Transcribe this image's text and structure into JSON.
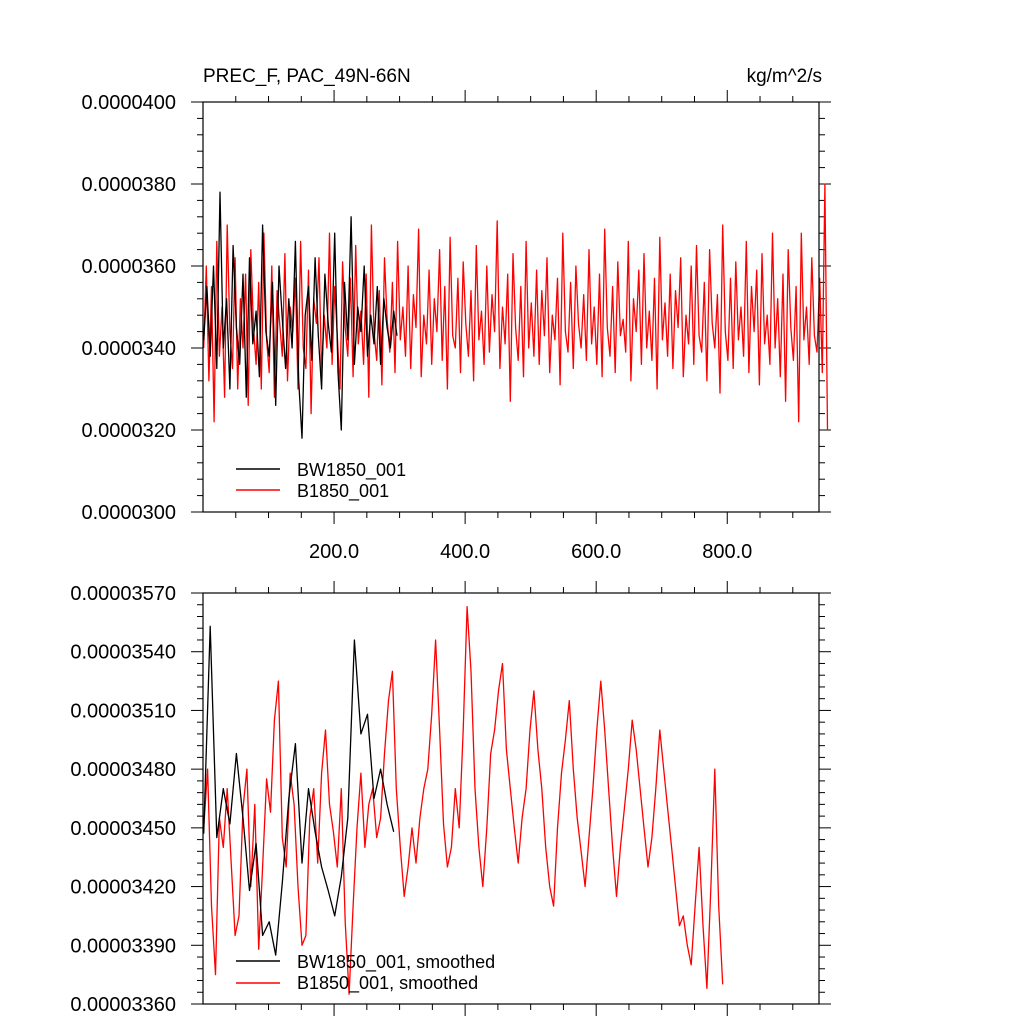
{
  "chart_data": [
    {
      "type": "line",
      "title": "PREC_F, PAC_49N-66N",
      "units": "kg/m^2/s",
      "xlim": [
        0,
        940
      ],
      "ylim": [
        3e-05,
        4e-05
      ],
      "xticks": [
        200,
        400,
        600,
        800
      ],
      "xtick_labels": [
        "200.0",
        "400.0",
        "600.0",
        "800.0"
      ],
      "yticks": [
        3e-05,
        3.2e-05,
        3.4e-05,
        3.6e-05,
        3.8e-05,
        4e-05
      ],
      "ytick_labels": [
        "0.0000300",
        "0.0000320",
        "0.0000340",
        "0.0000360",
        "0.0000380",
        "0.0000400"
      ],
      "legend_position": "bottom-left",
      "series": [
        {
          "name": "BW1850_001",
          "color": "#000000",
          "x_start": 1,
          "x_step": 5,
          "values": [
            3.42e-05,
            3.55e-05,
            3.38e-05,
            3.6e-05,
            3.35e-05,
            3.78e-05,
            3.4e-05,
            3.52e-05,
            3.3e-05,
            3.65e-05,
            3.45e-05,
            3.36e-05,
            3.58e-05,
            3.28e-05,
            3.62e-05,
            3.41e-05,
            3.49e-05,
            3.33e-05,
            3.7e-05,
            3.44e-05,
            3.38e-05,
            3.56e-05,
            3.26e-05,
            3.6e-05,
            3.47e-05,
            3.35e-05,
            3.52e-05,
            3.4e-05,
            3.66e-05,
            3.32e-05,
            3.18e-05,
            3.48e-05,
            3.55e-05,
            3.37e-05,
            3.62e-05,
            3.43e-05,
            3.3e-05,
            3.58e-05,
            3.46e-05,
            3.39e-05,
            3.68e-05,
            3.34e-05,
            3.2e-05,
            3.56e-05,
            3.42e-05,
            3.72e-05,
            3.36e-05,
            3.5e-05,
            3.44e-05,
            3.6e-05,
            3.38e-05,
            3.48e-05,
            3.41e-05,
            3.55e-05,
            3.36e-05,
            3.52e-05,
            3.45e-05,
            3.4e-05,
            3.49e-05,
            3.43e-05
          ]
        },
        {
          "name": "B1850_001",
          "color": "#ff0000",
          "x_start": 1,
          "x_step": 4,
          "values": [
            3.4e-05,
            3.6e-05,
            3.32e-05,
            3.55e-05,
            3.22e-05,
            3.66e-05,
            3.38e-05,
            3.5e-05,
            3.28e-05,
            3.7e-05,
            3.44e-05,
            3.35e-05,
            3.62e-05,
            3.3e-05,
            3.52e-05,
            3.4e-05,
            3.58e-05,
            3.26e-05,
            3.64e-05,
            3.45e-05,
            3.36e-05,
            3.56e-05,
            3.3e-05,
            3.68e-05,
            3.42e-05,
            3.34e-05,
            3.6e-05,
            3.28e-05,
            3.54e-05,
            3.46e-05,
            3.38e-05,
            3.63e-05,
            3.32e-05,
            3.5e-05,
            3.44e-05,
            3.57e-05,
            3.3e-05,
            3.66e-05,
            3.4e-05,
            3.35e-05,
            3.59e-05,
            3.24e-05,
            3.52e-05,
            3.46e-05,
            3.62e-05,
            3.34e-05,
            3.48e-05,
            3.4e-05,
            3.68e-05,
            3.36e-05,
            3.55e-05,
            3.43e-05,
            3.3e-05,
            3.61e-05,
            3.45e-05,
            3.38e-05,
            3.57e-05,
            3.33e-05,
            3.65e-05,
            3.41e-05,
            3.49e-05,
            3.36e-05,
            3.58e-05,
            3.28e-05,
            3.7e-05,
            3.44e-05,
            3.37e-05,
            3.54e-05,
            3.31e-05,
            3.62e-05,
            3.47e-05,
            3.39e-05,
            3.56e-05,
            3.34e-05,
            3.66e-05,
            3.42e-05,
            3.5e-05,
            3.38e-05,
            3.6e-05,
            3.35e-05,
            3.53e-05,
            3.45e-05,
            3.69e-05,
            3.33e-05,
            3.48e-05,
            3.41e-05,
            3.59e-05,
            3.36e-05,
            3.52e-05,
            3.44e-05,
            3.64e-05,
            3.37e-05,
            3.55e-05,
            3.3e-05,
            3.67e-05,
            3.43e-05,
            3.4e-05,
            3.57e-05,
            3.34e-05,
            3.61e-05,
            3.46e-05,
            3.38e-05,
            3.54e-05,
            3.32e-05,
            3.65e-05,
            3.42e-05,
            3.49e-05,
            3.36e-05,
            3.6e-05,
            3.39e-05,
            3.53e-05,
            3.44e-05,
            3.71e-05,
            3.35e-05,
            3.5e-05,
            3.41e-05,
            3.58e-05,
            3.27e-05,
            3.63e-05,
            3.45e-05,
            3.37e-05,
            3.55e-05,
            3.33e-05,
            3.66e-05,
            3.4e-05,
            3.51e-05,
            3.38e-05,
            3.59e-05,
            3.36e-05,
            3.54e-05,
            3.43e-05,
            3.62e-05,
            3.34e-05,
            3.48e-05,
            3.42e-05,
            3.57e-05,
            3.31e-05,
            3.68e-05,
            3.44e-05,
            3.39e-05,
            3.56e-05,
            3.35e-05,
            3.6e-05,
            3.46e-05,
            3.4e-05,
            3.53e-05,
            3.37e-05,
            3.64e-05,
            3.41e-05,
            3.5e-05,
            3.36e-05,
            3.58e-05,
            3.33e-05,
            3.69e-05,
            3.45e-05,
            3.38e-05,
            3.55e-05,
            3.34e-05,
            3.61e-05,
            3.43e-05,
            3.47e-05,
            3.39e-05,
            3.66e-05,
            3.32e-05,
            3.52e-05,
            3.44e-05,
            3.59e-05,
            3.36e-05,
            3.63e-05,
            3.4e-05,
            3.49e-05,
            3.37e-05,
            3.57e-05,
            3.3e-05,
            3.67e-05,
            3.42e-05,
            3.51e-05,
            3.38e-05,
            3.58e-05,
            3.35e-05,
            3.54e-05,
            3.45e-05,
            3.62e-05,
            3.33e-05,
            3.48e-05,
            3.41e-05,
            3.6e-05,
            3.36e-05,
            3.65e-05,
            3.43e-05,
            3.39e-05,
            3.56e-05,
            3.32e-05,
            3.64e-05,
            3.46e-05,
            3.4e-05,
            3.53e-05,
            3.29e-05,
            3.7e-05,
            3.44e-05,
            3.37e-05,
            3.57e-05,
            3.35e-05,
            3.61e-05,
            3.42e-05,
            3.5e-05,
            3.38e-05,
            3.66e-05,
            3.34e-05,
            3.55e-05,
            3.44e-05,
            3.59e-05,
            3.31e-05,
            3.63e-05,
            3.41e-05,
            3.48e-05,
            3.36e-05,
            3.68e-05,
            3.4e-05,
            3.52e-05,
            3.33e-05,
            3.58e-05,
            3.27e-05,
            3.64e-05,
            3.45e-05,
            3.37e-05,
            3.55e-05,
            3.22e-05,
            3.68e-05,
            3.42e-05,
            3.5e-05,
            3.36e-05,
            3.62e-05,
            3.43e-05,
            3.39e-05,
            3.57e-05,
            3.34e-05,
            3.8e-05,
            3.2e-05
          ]
        }
      ]
    },
    {
      "type": "line",
      "xlim": [
        0,
        940
      ],
      "ylim": [
        3.36e-05,
        3.57e-05
      ],
      "yticks": [
        3.36e-05,
        3.39e-05,
        3.42e-05,
        3.45e-05,
        3.48e-05,
        3.51e-05,
        3.54e-05,
        3.57e-05
      ],
      "ytick_labels": [
        "0.00003360",
        "0.00003390",
        "0.00003420",
        "0.00003450",
        "0.00003480",
        "0.00003510",
        "0.00003540",
        "0.00003570"
      ],
      "xticks": [
        200,
        400,
        600,
        800
      ],
      "legend_position": "bottom-left",
      "series": [
        {
          "name": "BW1850_001, smoothed",
          "color": "#000000",
          "x_start": 1,
          "x_step": 10,
          "values": [
            3.447e-05,
            3.553e-05,
            3.445e-05,
            3.47e-05,
            3.452e-05,
            3.488e-05,
            3.455e-05,
            3.418e-05,
            3.442e-05,
            3.395e-05,
            3.402e-05,
            3.385e-05,
            3.422e-05,
            3.465e-05,
            3.493e-05,
            3.432e-05,
            3.47e-05,
            3.448e-05,
            3.43e-05,
            3.418e-05,
            3.405e-05,
            3.425e-05,
            3.455e-05,
            3.546e-05,
            3.498e-05,
            3.508e-05,
            3.465e-05,
            3.48e-05,
            3.462e-05,
            3.448e-05
          ]
        },
        {
          "name": "B1850_001, smoothed",
          "color": "#ff0000",
          "x_start": 1,
          "x_step": 6,
          "values": [
            3.45e-05,
            3.48e-05,
            3.41e-05,
            3.375e-05,
            3.455e-05,
            3.44e-05,
            3.47e-05,
            3.432e-05,
            3.395e-05,
            3.405e-05,
            3.46e-05,
            3.48e-05,
            3.42e-05,
            3.462e-05,
            3.388e-05,
            3.43e-05,
            3.475e-05,
            3.458e-05,
            3.505e-05,
            3.525e-05,
            3.445e-05,
            3.43e-05,
            3.478e-05,
            3.462e-05,
            3.42e-05,
            3.39e-05,
            3.395e-05,
            3.455e-05,
            3.47e-05,
            3.432e-05,
            3.478e-05,
            3.5e-05,
            3.462e-05,
            3.448e-05,
            3.43e-05,
            3.47e-05,
            3.402e-05,
            3.365e-05,
            3.41e-05,
            3.45e-05,
            3.478e-05,
            3.44e-05,
            3.462e-05,
            3.47e-05,
            3.445e-05,
            3.455e-05,
            3.488e-05,
            3.515e-05,
            3.53e-05,
            3.47e-05,
            3.44e-05,
            3.415e-05,
            3.43e-05,
            3.45e-05,
            3.432e-05,
            3.455e-05,
            3.47e-05,
            3.48e-05,
            3.508e-05,
            3.546e-05,
            3.5e-05,
            3.452e-05,
            3.43e-05,
            3.44e-05,
            3.47e-05,
            3.45e-05,
            3.5e-05,
            3.563e-05,
            3.53e-05,
            3.47e-05,
            3.44e-05,
            3.42e-05,
            3.45e-05,
            3.488e-05,
            3.5e-05,
            3.52e-05,
            3.534e-05,
            3.49e-05,
            3.47e-05,
            3.45e-05,
            3.432e-05,
            3.455e-05,
            3.47e-05,
            3.5e-05,
            3.52e-05,
            3.49e-05,
            3.47e-05,
            3.44e-05,
            3.42e-05,
            3.41e-05,
            3.45e-05,
            3.478e-05,
            3.495e-05,
            3.515e-05,
            3.48e-05,
            3.455e-05,
            3.438e-05,
            3.42e-05,
            3.445e-05,
            3.47e-05,
            3.5e-05,
            3.525e-05,
            3.5e-05,
            3.47e-05,
            3.44e-05,
            3.415e-05,
            3.44e-05,
            3.46e-05,
            3.48e-05,
            3.505e-05,
            3.49e-05,
            3.47e-05,
            3.45e-05,
            3.43e-05,
            3.445e-05,
            3.47e-05,
            3.5e-05,
            3.48e-05,
            3.46e-05,
            3.44e-05,
            3.42e-05,
            3.4e-05,
            3.405e-05,
            3.39e-05,
            3.38e-05,
            3.41e-05,
            3.44e-05,
            3.4e-05,
            3.368e-05,
            3.42e-05,
            3.48e-05,
            3.41e-05,
            3.37e-05
          ]
        }
      ]
    }
  ],
  "legend": {
    "top": {
      "item1": "BW1850_001",
      "item2": "B1850_001"
    },
    "bottom": {
      "item1": "BW1850_001, smoothed",
      "item2": "B1850_001, smoothed"
    }
  }
}
